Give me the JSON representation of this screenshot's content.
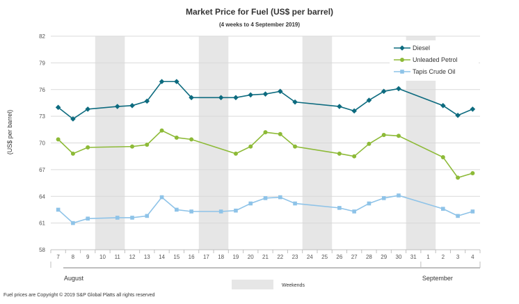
{
  "chart_data": {
    "type": "line",
    "title": "Market Price for Fuel (US$ per barrel)",
    "subtitle": "(4 weeks to 4 September 2019)",
    "ylabel": "(US$ per barrel)",
    "ylim": [
      58,
      82
    ],
    "yticks": [
      "58",
      "61",
      "64",
      "67",
      "70",
      "73",
      "76",
      "79",
      "82"
    ],
    "x": [
      "7",
      "8",
      "9",
      "10",
      "11",
      "12",
      "13",
      "14",
      "15",
      "16",
      "17",
      "18",
      "19",
      "20",
      "21",
      "22",
      "23",
      "24",
      "25",
      "26",
      "27",
      "28",
      "29",
      "30",
      "31",
      "1",
      "2",
      "3",
      "4"
    ],
    "months": [
      {
        "label": "August",
        "start": "7",
        "end": "31"
      },
      {
        "label": "September",
        "start": "1",
        "end": "4"
      }
    ],
    "weekend_bands": [
      [
        "10",
        "11"
      ],
      [
        "17",
        "18"
      ],
      [
        "24",
        "25"
      ],
      [
        "31",
        "1"
      ]
    ],
    "series": [
      {
        "name": "Diesel",
        "color": "#0d6b7f",
        "marker": "diamond",
        "values": [
          74.0,
          72.7,
          73.8,
          null,
          74.1,
          74.2,
          74.7,
          76.9,
          76.9,
          75.1,
          null,
          75.1,
          75.1,
          75.4,
          75.5,
          75.8,
          74.6,
          null,
          null,
          74.1,
          73.6,
          74.8,
          75.8,
          76.1,
          null,
          null,
          74.2,
          73.1,
          73.8
        ]
      },
      {
        "name": "Unleaded Petrol",
        "color": "#8dba37",
        "marker": "circle",
        "values": [
          70.4,
          68.8,
          69.5,
          null,
          null,
          69.6,
          69.8,
          71.4,
          70.6,
          70.4,
          null,
          null,
          68.8,
          69.6,
          71.2,
          71.0,
          69.6,
          null,
          null,
          68.8,
          68.5,
          69.9,
          70.9,
          70.8,
          null,
          null,
          68.4,
          66.1,
          66.6
        ]
      },
      {
        "name": "Tapis Crude Oil",
        "color": "#8ec3e8",
        "marker": "square",
        "values": [
          62.5,
          61.0,
          61.5,
          null,
          61.6,
          61.6,
          61.8,
          63.9,
          62.5,
          62.3,
          null,
          62.3,
          62.4,
          63.2,
          63.8,
          63.9,
          63.2,
          null,
          null,
          62.7,
          62.3,
          63.2,
          63.8,
          64.1,
          null,
          null,
          62.6,
          61.8,
          62.3
        ]
      }
    ],
    "weekends_legend": "Weekends",
    "copyright": "Fuel prices are Copyright © 2019 S&P Global Platts all rights reserved"
  }
}
